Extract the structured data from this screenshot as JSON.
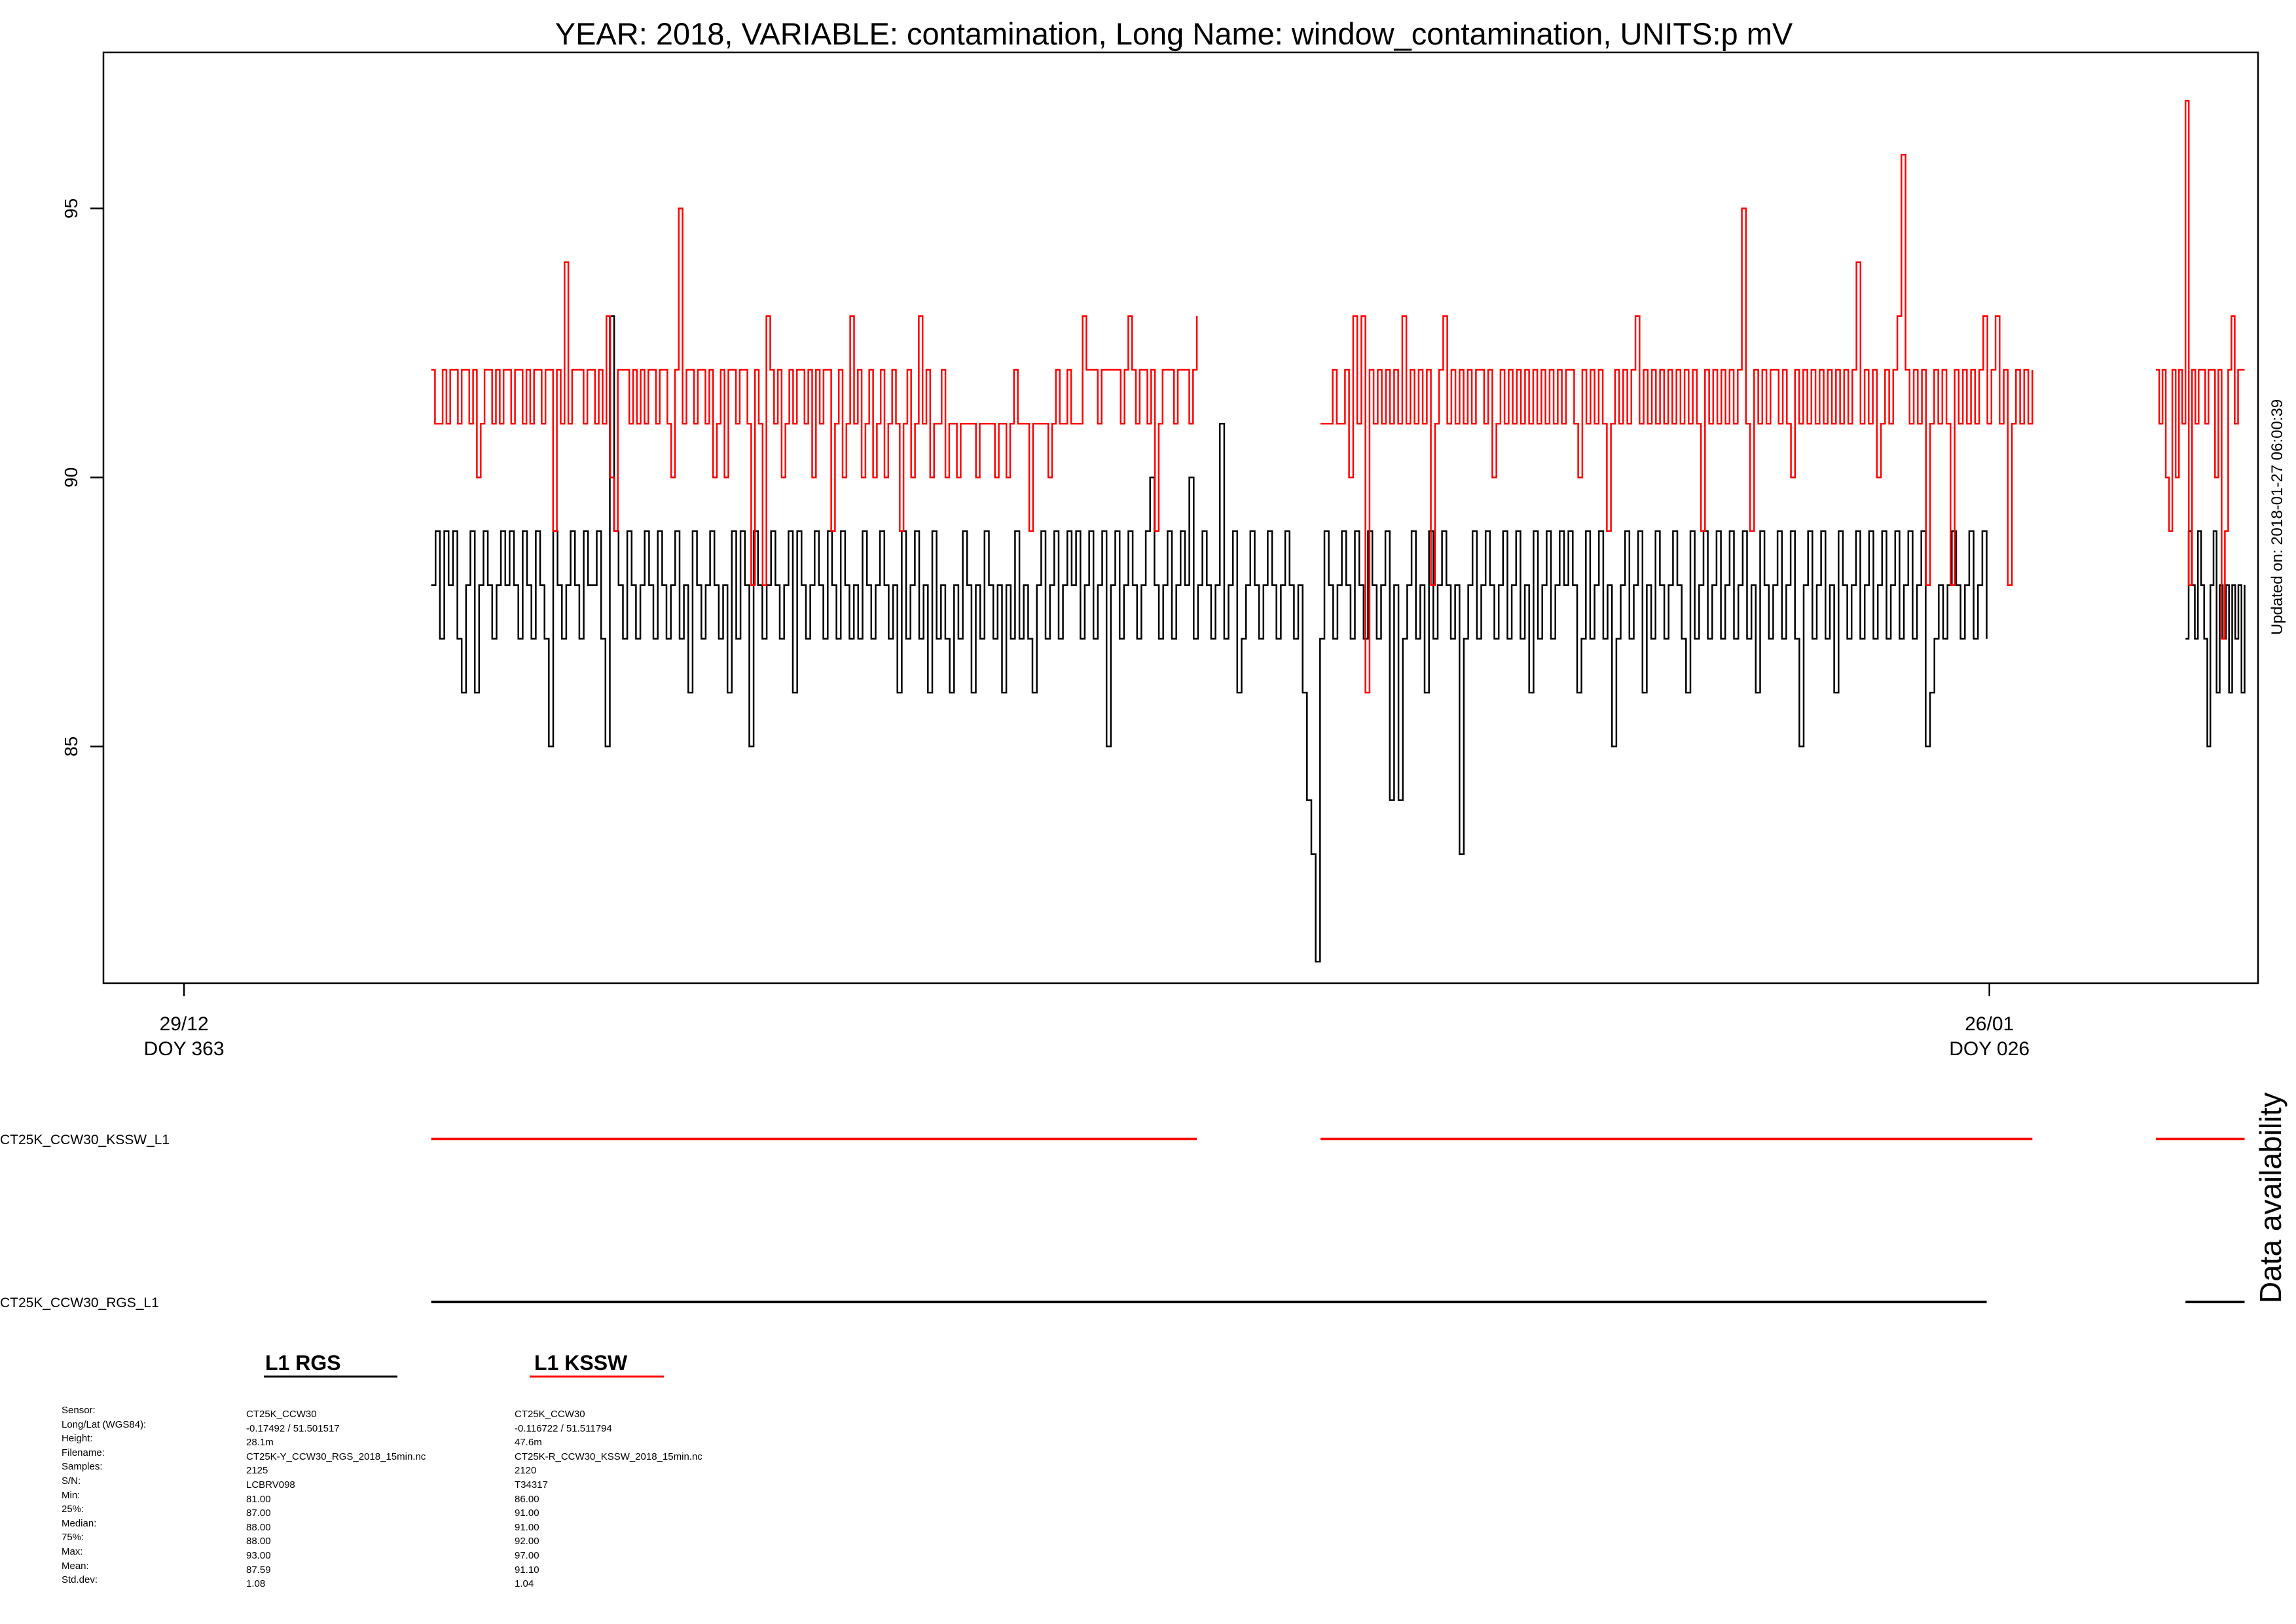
{
  "chart_data": {
    "type": "line",
    "title": "YEAR: 2018, VARIABLE: contamination, Long Name: window_contamination, UNITS:p mV",
    "xlabel": "",
    "ylabel": "",
    "ylim": [
      80.6,
      97.9
    ],
    "yticks": [
      85,
      90,
      95
    ],
    "xlim": [
      "2017-12-27T18:00",
      "2018-01-30T04:00"
    ],
    "xticks": [
      {
        "x": "2017-12-29",
        "line1": "29/12",
        "line2": "DOY 363"
      },
      {
        "x": "2018-01-26",
        "line1": "26/01",
        "line2": "DOY 026"
      }
    ],
    "grid": false,
    "updated_label": "Updated on: 2018-01-27 06:00:39",
    "availability_label": "Data availability",
    "series": [
      {
        "name": "CT25K_CCW30_KSSW_L1",
        "color": "#ff0000",
        "segments": [
          {
            "start": "2018-01-01T20:00",
            "end": "2018-01-13T17:00",
            "values": [
              92,
              91,
              91,
              92,
              91,
              92,
              92,
              91,
              92,
              92,
              91,
              92,
              90,
              91,
              92,
              92,
              91,
              92,
              91,
              92,
              92,
              91,
              92,
              92,
              91,
              92,
              91,
              92,
              92,
              91,
              92,
              92,
              89,
              92,
              91,
              94,
              91,
              92,
              92,
              92,
              91,
              92,
              92,
              91,
              92,
              91,
              93,
              90,
              89,
              92,
              92,
              92,
              91,
              92,
              91,
              92,
              91,
              92,
              92,
              91,
              92,
              92,
              91,
              90,
              92,
              95,
              91,
              92,
              92,
              91,
              92,
              92,
              91,
              92,
              90,
              91,
              92,
              90,
              92,
              92,
              91,
              92,
              92,
              91,
              88,
              92,
              91,
              88,
              93,
              92,
              91,
              92,
              90,
              91,
              92,
              91,
              92,
              92,
              91,
              92,
              90,
              92,
              91,
              92,
              92,
              89,
              91,
              92,
              90,
              91,
              93,
              91,
              92,
              90,
              91,
              92,
              90,
              91,
              92,
              90,
              91,
              92,
              91,
              89,
              91,
              92,
              90,
              91,
              93,
              91,
              92,
              90,
              91,
              91,
              92,
              90,
              91,
              91,
              90,
              91,
              91,
              91,
              91,
              90,
              91,
              91,
              91,
              91,
              90,
              91,
              91,
              90,
              91,
              92,
              91,
              91,
              91,
              89,
              91,
              91,
              91,
              91,
              90,
              91,
              92,
              91,
              91,
              92,
              91,
              91,
              91,
              93,
              92,
              92,
              92,
              91,
              92,
              92,
              92,
              92,
              92,
              91,
              92,
              93,
              92,
              91,
              92,
              92,
              91,
              92,
              89,
              91,
              92,
              92,
              92,
              91,
              92,
              92,
              92,
              91,
              92,
              93
            ]
          },
          {
            "start": "2018-01-15T15:00",
            "end": "2018-01-26T16:00",
            "values": [
              91,
              91,
              91,
              92,
              91,
              91,
              92,
              90,
              93,
              91,
              93,
              86,
              92,
              91,
              92,
              91,
              92,
              91,
              92,
              91,
              93,
              91,
              92,
              91,
              92,
              91,
              92,
              88,
              91,
              92,
              93,
              91,
              92,
              91,
              92,
              91,
              92,
              91,
              92,
              92,
              91,
              92,
              90,
              91,
              92,
              91,
              92,
              91,
              92,
              91,
              92,
              91,
              92,
              91,
              92,
              91,
              92,
              91,
              92,
              91,
              92,
              92,
              91,
              90,
              92,
              91,
              92,
              91,
              92,
              91,
              89,
              91,
              92,
              91,
              92,
              91,
              92,
              93,
              91,
              92,
              91,
              92,
              91,
              92,
              91,
              92,
              91,
              92,
              91,
              92,
              91,
              92,
              91,
              89,
              92,
              91,
              92,
              91,
              92,
              91,
              92,
              91,
              92,
              95,
              91,
              89,
              92,
              91,
              92,
              91,
              92,
              92,
              91,
              92,
              91,
              90,
              92,
              91,
              92,
              91,
              92,
              91,
              92,
              91,
              92,
              91,
              92,
              91,
              92,
              91,
              92,
              94,
              91,
              92,
              91,
              92,
              90,
              91,
              92,
              91,
              92,
              93,
              96,
              92,
              91,
              92,
              91,
              92,
              88,
              91,
              92,
              91,
              92,
              91,
              88,
              92,
              91,
              92,
              91,
              92,
              91,
              92,
              93,
              91,
              92,
              93,
              91,
              92,
              88,
              91,
              92,
              91,
              92,
              91,
              92
            ]
          },
          {
            "start": "2018-01-28T14:00",
            "end": "2018-01-29T23:00",
            "values": [
              92,
              91,
              92,
              90,
              89,
              92,
              90,
              92,
              91,
              97,
              88,
              92,
              91,
              92,
              92,
              91,
              92,
              92,
              90,
              92,
              87,
              89,
              92,
              93,
              91,
              92,
              92,
              92
            ]
          }
        ]
      },
      {
        "name": "CT25K_CCW30_RGS_L1",
        "color": "#000000",
        "segments": [
          {
            "start": "2018-01-01T20:00",
            "end": "2018-01-25T23:00",
            "values": [
              88,
              89,
              87,
              89,
              88,
              89,
              87,
              86,
              88,
              89,
              86,
              88,
              89,
              88,
              87,
              88,
              89,
              88,
              89,
              88,
              87,
              89,
              88,
              87,
              89,
              88,
              87,
              85,
              89,
              88,
              87,
              88,
              89,
              88,
              87,
              89,
              88,
              88,
              89,
              87,
              85,
              93,
              89,
              88,
              87,
              89,
              88,
              87,
              88,
              89,
              88,
              87,
              89,
              88,
              87,
              88,
              89,
              87,
              88,
              86,
              89,
              88,
              87,
              88,
              89,
              88,
              87,
              88,
              86,
              89,
              87,
              89,
              88,
              85,
              89,
              88,
              87,
              88,
              89,
              88,
              87,
              88,
              89,
              86,
              89,
              88,
              87,
              88,
              89,
              88,
              87,
              89,
              88,
              87,
              89,
              88,
              87,
              88,
              87,
              89,
              88,
              87,
              88,
              89,
              88,
              87,
              88,
              86,
              89,
              87,
              88,
              89,
              87,
              88,
              86,
              89,
              87,
              88,
              87,
              86,
              88,
              87,
              89,
              88,
              86,
              88,
              87,
              89,
              88,
              87,
              88,
              86,
              88,
              87,
              89,
              87,
              88,
              87,
              86,
              88,
              89,
              87,
              88,
              89,
              87,
              88,
              89,
              88,
              89,
              87,
              88,
              89,
              87,
              88,
              89,
              85,
              88,
              89,
              87,
              88,
              89,
              88,
              87,
              88,
              89,
              90,
              88,
              87,
              88,
              89,
              87,
              88,
              89,
              88,
              90,
              87,
              88,
              89,
              88,
              87,
              88,
              91,
              87,
              88,
              89,
              86,
              87,
              88,
              89,
              88,
              87,
              88,
              89,
              88,
              87,
              88,
              89,
              88,
              87,
              88,
              86,
              84,
              83,
              81,
              87,
              89,
              88,
              87,
              88,
              89,
              88,
              87,
              89,
              88,
              87,
              89,
              88,
              87,
              88,
              89,
              84,
              88,
              84,
              87,
              88,
              89,
              87,
              88,
              86,
              89,
              87,
              88,
              89,
              88,
              87,
              88,
              83,
              87,
              88,
              89,
              87,
              88,
              89,
              88,
              87,
              88,
              89,
              87,
              88,
              89,
              87,
              88,
              86,
              89,
              87,
              88,
              89,
              87,
              88,
              89,
              88,
              89,
              88,
              86,
              87,
              89,
              87,
              88,
              89,
              87,
              88,
              85,
              87,
              88,
              89,
              87,
              88,
              89,
              86,
              88,
              87,
              89,
              88,
              87,
              88,
              89,
              88,
              87,
              86,
              89,
              87,
              88,
              89,
              87,
              88,
              89,
              87,
              88,
              89,
              87,
              88,
              89,
              87,
              88,
              86,
              89,
              88,
              87,
              88,
              89,
              87,
              88,
              89,
              87,
              85,
              88,
              89,
              87,
              88,
              89,
              87,
              88,
              86,
              89,
              88,
              87,
              88,
              89,
              87,
              88,
              89,
              87,
              88,
              89,
              87,
              88,
              89,
              87,
              88,
              89,
              87,
              88,
              89,
              85,
              86,
              87,
              88,
              87,
              88,
              89,
              88,
              87,
              88,
              89,
              87,
              88,
              89,
              87
            ]
          },
          {
            "start": "2018-01-29T01:00",
            "end": "2018-01-29T23:00",
            "values": [
              87,
              89,
              88,
              87,
              89,
              88,
              87,
              85,
              88,
              89,
              86,
              88,
              87,
              88,
              86,
              88,
              87,
              88,
              86,
              88
            ]
          }
        ]
      }
    ],
    "legend": [
      {
        "label": "L1 RGS",
        "color": "#000000"
      },
      {
        "label": "L1 KSSW",
        "color": "#ff0000"
      }
    ]
  },
  "stats": {
    "labels": [
      "Sensor:",
      "Long/Lat (WGS84):",
      "Height:",
      "Filename:",
      "Samples:",
      "S/N:",
      "Min:",
      "25%:",
      "Median:",
      "75%:",
      "Max:",
      "Mean:",
      "Std.dev:"
    ],
    "rgs": [
      "CT25K_CCW30",
      "-0.17492 / 51.501517",
      "28.1m",
      "CT25K-Y_CCW30_RGS_2018_15min.nc",
      "2125",
      "LCBRV098",
      "81.00",
      "87.00",
      "88.00",
      "88.00",
      "93.00",
      "87.59",
      "1.08"
    ],
    "kssw": [
      "CT25K_CCW30",
      "-0.116722 / 51.511794",
      "47.6m",
      "CT25K-R_CCW30_KSSW_2018_15min.nc",
      "2120",
      "T34317",
      "86.00",
      "91.00",
      "91.00",
      "92.00",
      "97.00",
      "91.10",
      "1.04"
    ]
  }
}
